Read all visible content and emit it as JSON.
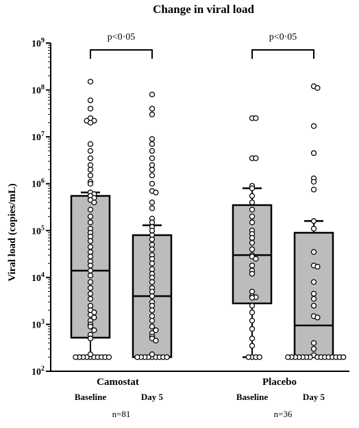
{
  "chart_data": {
    "type": "box",
    "title": "Change in viral load",
    "ylabel": "Viral load (copies/mL)",
    "yscale": "log10",
    "ylim": [
      100,
      1000000000
    ],
    "yticks": [
      {
        "value": 100,
        "base": "10",
        "exp": "2"
      },
      {
        "value": 1000,
        "base": "10",
        "exp": "3"
      },
      {
        "value": 10000,
        "base": "10",
        "exp": "4"
      },
      {
        "value": 100000,
        "base": "10",
        "exp": "5"
      },
      {
        "value": 1000000,
        "base": "10",
        "exp": "6"
      },
      {
        "value": 10000000,
        "base": "10",
        "exp": "7"
      },
      {
        "value": 100000000,
        "base": "10",
        "exp": "8"
      },
      {
        "value": 1000000000,
        "base": "10",
        "exp": "9"
      }
    ],
    "groups": [
      {
        "name": "Camostat",
        "n_label": "n=81",
        "p_label": "p<0·05"
      },
      {
        "name": "Placebo",
        "n_label": "n=36",
        "p_label": "p<0·05"
      }
    ],
    "boxes": [
      {
        "group": "Camostat",
        "label": "Baseline",
        "q1": 520,
        "median": 14000,
        "q3": 550000,
        "whisker_low": 200,
        "whisker_high": 650000,
        "points": [
          150000000,
          60000000,
          40000000,
          25000000,
          22000000,
          22000000,
          20000000,
          7000000,
          5000000,
          3500000,
          2500000,
          2000000,
          1500000,
          1100000,
          1000000,
          650000,
          600000,
          550000,
          500000,
          450000,
          400000,
          280000,
          200000,
          150000,
          110000,
          90000,
          75000,
          60000,
          45000,
          35000,
          28000,
          22000,
          18000,
          14000,
          11000,
          8000,
          6000,
          4500,
          3500,
          2500,
          2000,
          1800,
          1600,
          1400,
          1200,
          1000,
          900,
          750,
          600,
          500,
          200,
          200,
          200,
          200,
          200,
          200,
          200,
          200,
          200,
          200,
          230
        ]
      },
      {
        "group": "Camostat",
        "label": "Day 5",
        "q1": 200,
        "median": 4000,
        "q3": 80000,
        "whisker_low": 200,
        "whisker_high": 130000,
        "points": [
          80000000,
          40000000,
          30000000,
          9000000,
          7000000,
          5000000,
          3500000,
          2500000,
          2000000,
          1500000,
          1000000,
          700000,
          650000,
          400000,
          300000,
          180000,
          150000,
          120000,
          100000,
          80000,
          65000,
          50000,
          40000,
          30000,
          25000,
          20000,
          15000,
          12000,
          10000,
          8000,
          6000,
          5000,
          4000,
          3000,
          2500,
          2000,
          1500,
          1200,
          900,
          750,
          650,
          550,
          500,
          450,
          200,
          200,
          200,
          200,
          200,
          200,
          200,
          200,
          200,
          230
        ]
      },
      {
        "group": "Placebo",
        "label": "Baseline",
        "q1": 2800,
        "median": 30000,
        "q3": 350000,
        "whisker_low": 200,
        "whisker_high": 800000,
        "points": [
          25000000,
          25000000,
          3500000,
          3500000,
          900000,
          800000,
          550000,
          400000,
          280000,
          200000,
          150000,
          100000,
          85000,
          70000,
          55000,
          40000,
          30000,
          28000,
          25000,
          18000,
          14000,
          12000,
          5000,
          4000,
          3800,
          3700,
          2500,
          1800,
          1200,
          800,
          500,
          350,
          200,
          200,
          200,
          200
        ]
      },
      {
        "group": "Placebo",
        "label": "Day 5",
        "q1": 200,
        "median": 950,
        "q3": 90000,
        "whisker_low": 200,
        "whisker_high": 160000,
        "points": [
          120000000,
          110000000,
          17000000,
          4500000,
          1300000,
          1100000,
          750000,
          160000,
          110000,
          35000,
          18000,
          17000,
          8000,
          4500,
          3500,
          2500,
          1500,
          1400,
          400,
          300,
          220,
          200,
          200,
          200,
          200,
          200,
          200,
          200,
          200,
          200,
          200,
          200,
          200,
          200,
          200,
          200
        ]
      }
    ]
  }
}
